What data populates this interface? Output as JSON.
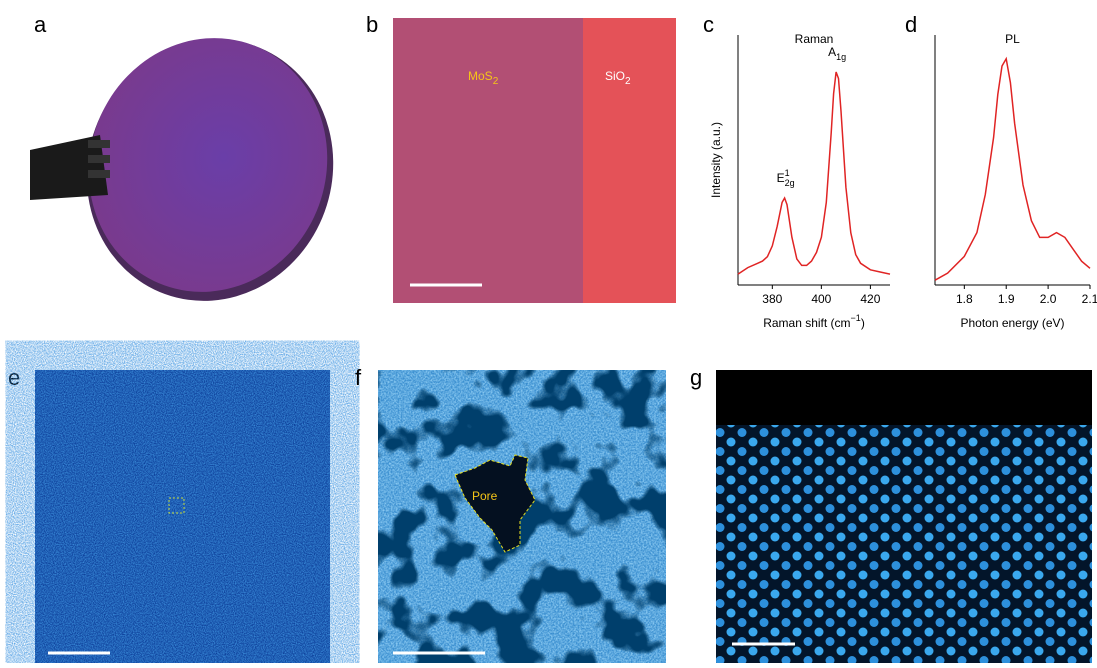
{
  "panel_labels": [
    "a",
    "b",
    "c",
    "d",
    "e",
    "f",
    "g"
  ],
  "image_labels": {
    "mos2": {
      "base": "MoS",
      "sub": "2"
    },
    "sio2": {
      "base": "SiO",
      "sub": "2"
    },
    "pore": "Pore"
  },
  "chart_data": [
    {
      "type": "line",
      "title": "Raman",
      "x_label": {
        "base": "Raman shift (cm",
        "sup": "−1",
        "tail": ")"
      },
      "y_label": "Intensity (a.u.)",
      "annotations": [
        {
          "base": "E",
          "sup": "1",
          "sub": "2g",
          "x": 385
        },
        {
          "base": "A",
          "sub": "1g",
          "x": 406
        }
      ],
      "x": [
        366,
        370,
        374,
        376,
        378,
        380,
        382,
        384,
        385,
        386,
        388,
        390,
        392,
        394,
        396,
        398,
        400,
        402,
        404,
        405,
        406,
        407,
        408,
        410,
        412,
        414,
        416,
        420,
        424,
        428
      ],
      "series": [
        {
          "color": "#e02424",
          "values": [
            0.05,
            0.08,
            0.1,
            0.11,
            0.13,
            0.18,
            0.27,
            0.38,
            0.4,
            0.37,
            0.22,
            0.12,
            0.09,
            0.09,
            0.11,
            0.15,
            0.22,
            0.38,
            0.7,
            0.88,
            0.98,
            0.95,
            0.8,
            0.45,
            0.24,
            0.14,
            0.1,
            0.07,
            0.06,
            0.05
          ]
        }
      ],
      "xlim": [
        366,
        428
      ],
      "xticks": [
        380,
        400,
        420
      ],
      "ylim": [
        0,
        1.15
      ]
    },
    {
      "type": "line",
      "title": "PL",
      "x_label": {
        "base": "Photon energy (eV)"
      },
      "x": [
        1.73,
        1.76,
        1.8,
        1.83,
        1.85,
        1.87,
        1.88,
        1.89,
        1.9,
        1.91,
        1.92,
        1.94,
        1.96,
        1.98,
        2.0,
        2.02,
        2.04,
        2.06,
        2.08,
        2.1
      ],
      "series": [
        {
          "color": "#e02424",
          "values": [
            0.02,
            0.05,
            0.12,
            0.22,
            0.38,
            0.62,
            0.8,
            0.92,
            0.95,
            0.85,
            0.68,
            0.42,
            0.27,
            0.2,
            0.2,
            0.22,
            0.2,
            0.15,
            0.1,
            0.07
          ]
        }
      ],
      "xlim": [
        1.73,
        2.1
      ],
      "xticks": [
        1.8,
        1.9,
        {
          "value": 2,
          "label": "2.0"
        },
        2.1
      ],
      "ylim": [
        0,
        1.05
      ]
    }
  ]
}
